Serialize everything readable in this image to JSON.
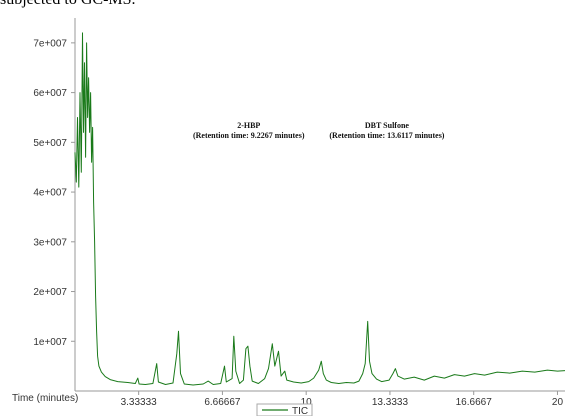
{
  "caption": "subjected to GC-MS.",
  "chart_data": {
    "type": "line",
    "xlabel": "Time (minutes)",
    "xlim": [
      0.8,
      20.3
    ],
    "ylim": [
      0,
      75000000
    ],
    "x_ticks": [
      3.33333,
      6.66667,
      10,
      13.3333,
      16.6667,
      20
    ],
    "x_tick_labels": [
      "3.33333",
      "6.66667",
      "10",
      "13.3333",
      "16.6667",
      "20"
    ],
    "y_ticks": [
      10000000,
      20000000,
      30000000,
      40000000,
      50000000,
      60000000,
      70000000
    ],
    "y_tick_labels": [
      "1e+007",
      "2e+007",
      "3e+007",
      "4e+007",
      "5e+007",
      "6e+007",
      "7e+007"
    ],
    "grid": false,
    "legend_position": "bottom-center",
    "series": [
      {
        "name": "TIC",
        "color": "#1a7a1a",
        "points": [
          [
            0.8,
            48000000
          ],
          [
            0.85,
            42000000
          ],
          [
            0.9,
            55000000
          ],
          [
            0.95,
            41000000
          ],
          [
            1.0,
            60000000
          ],
          [
            1.05,
            44000000
          ],
          [
            1.1,
            72000000
          ],
          [
            1.14,
            52000000
          ],
          [
            1.18,
            66000000
          ],
          [
            1.22,
            47000000
          ],
          [
            1.26,
            70000000
          ],
          [
            1.3,
            55000000
          ],
          [
            1.34,
            63000000
          ],
          [
            1.38,
            52000000
          ],
          [
            1.42,
            60000000
          ],
          [
            1.46,
            46000000
          ],
          [
            1.5,
            53000000
          ],
          [
            1.54,
            38000000
          ],
          [
            1.58,
            30000000
          ],
          [
            1.62,
            19000000
          ],
          [
            1.66,
            12000000
          ],
          [
            1.7,
            7000000
          ],
          [
            1.75,
            5000000
          ],
          [
            1.85,
            3800000
          ],
          [
            2.0,
            2900000
          ],
          [
            2.2,
            2300000
          ],
          [
            2.5,
            1900000
          ],
          [
            2.9,
            1700000
          ],
          [
            3.2,
            1500000
          ],
          [
            3.3,
            2600000
          ],
          [
            3.35,
            1400000
          ],
          [
            3.6,
            1300000
          ],
          [
            3.9,
            1500000
          ],
          [
            4.05,
            5500000
          ],
          [
            4.12,
            1800000
          ],
          [
            4.4,
            1300000
          ],
          [
            4.7,
            1600000
          ],
          [
            4.85,
            7500000
          ],
          [
            4.92,
            12000000
          ],
          [
            5.0,
            3500000
          ],
          [
            5.15,
            1400000
          ],
          [
            5.5,
            1200000
          ],
          [
            5.9,
            1400000
          ],
          [
            6.1,
            2000000
          ],
          [
            6.3,
            1300000
          ],
          [
            6.6,
            1500000
          ],
          [
            6.75,
            5000000
          ],
          [
            6.82,
            1800000
          ],
          [
            7.05,
            2500000
          ],
          [
            7.12,
            11000000
          ],
          [
            7.2,
            4000000
          ],
          [
            7.35,
            1500000
          ],
          [
            7.5,
            2200000
          ],
          [
            7.6,
            8500000
          ],
          [
            7.68,
            9000000
          ],
          [
            7.76,
            5000000
          ],
          [
            7.85,
            2000000
          ],
          [
            8.1,
            1500000
          ],
          [
            8.35,
            2500000
          ],
          [
            8.5,
            4500000
          ],
          [
            8.65,
            9500000
          ],
          [
            8.75,
            5000000
          ],
          [
            8.9,
            8000000
          ],
          [
            9.0,
            3000000
          ],
          [
            9.15,
            4000000
          ],
          [
            9.23,
            2200000
          ],
          [
            9.5,
            1800000
          ],
          [
            9.8,
            1600000
          ],
          [
            10.1,
            1900000
          ],
          [
            10.3,
            2600000
          ],
          [
            10.5,
            4200000
          ],
          [
            10.6,
            6000000
          ],
          [
            10.68,
            3500000
          ],
          [
            10.8,
            2200000
          ],
          [
            11.0,
            1700000
          ],
          [
            11.3,
            1500000
          ],
          [
            11.6,
            1700000
          ],
          [
            11.9,
            1600000
          ],
          [
            12.1,
            2000000
          ],
          [
            12.25,
            3500000
          ],
          [
            12.35,
            5500000
          ],
          [
            12.45,
            14000000
          ],
          [
            12.52,
            6000000
          ],
          [
            12.62,
            3500000
          ],
          [
            12.8,
            2400000
          ],
          [
            13.0,
            1900000
          ],
          [
            13.3,
            2200000
          ],
          [
            13.45,
            3500000
          ],
          [
            13.55,
            4500000
          ],
          [
            13.65,
            3000000
          ],
          [
            13.9,
            2400000
          ],
          [
            14.3,
            2800000
          ],
          [
            14.7,
            2200000
          ],
          [
            15.1,
            3000000
          ],
          [
            15.5,
            2600000
          ],
          [
            15.9,
            3300000
          ],
          [
            16.3,
            3000000
          ],
          [
            16.7,
            3500000
          ],
          [
            17.1,
            3200000
          ],
          [
            17.6,
            3800000
          ],
          [
            18.1,
            3600000
          ],
          [
            18.6,
            4000000
          ],
          [
            19.1,
            3800000
          ],
          [
            19.6,
            4200000
          ],
          [
            20.0,
            4000000
          ],
          [
            20.3,
            4100000
          ]
        ]
      }
    ],
    "annotations": [
      {
        "title": "2-HBP",
        "subtitle": "(Retention time: 9.2267 minutes)",
        "x": 9.2267
      },
      {
        "title": "DBT Sulfone",
        "subtitle": "(Retention time: 13.6117 minutes)",
        "x": 13.6117
      }
    ]
  }
}
